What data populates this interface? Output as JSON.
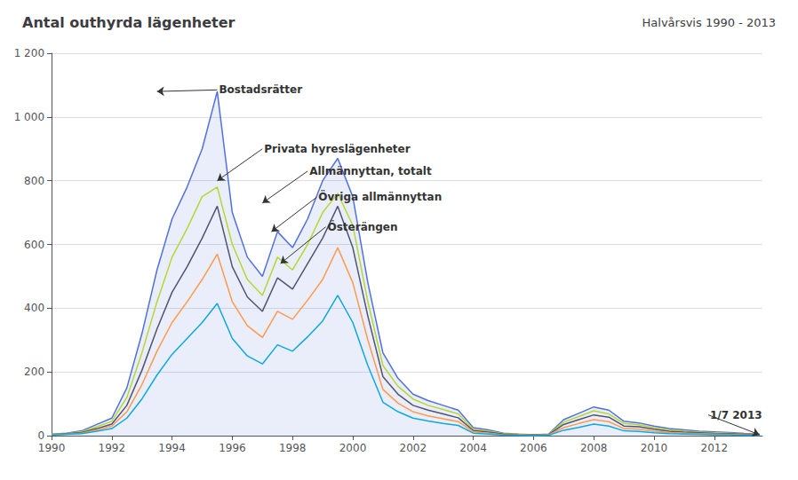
{
  "chart_data": {
    "type": "line",
    "title": "Antal outhyrda lägenheter",
    "subtitle": "Halvårsvis 1990 - 2013",
    "x": [
      1990,
      1990.5,
      1991,
      1991.5,
      1992,
      1992.5,
      1993,
      1993.5,
      1994,
      1994.5,
      1995,
      1995.5,
      1996,
      1996.5,
      1997,
      1997.5,
      1998,
      1998.5,
      1999,
      1999.5,
      2000,
      2000.5,
      2001,
      2001.5,
      2002,
      2002.5,
      2003,
      2003.5,
      2004,
      2004.5,
      2005,
      2005.5,
      2006,
      2006.5,
      2007,
      2007.5,
      2008,
      2008.5,
      2009,
      2009.5,
      2010,
      2010.5,
      2011,
      2011.5,
      2012,
      2012.5,
      2013,
      2013.5
    ],
    "series": [
      {
        "name": "Bostadsrätter",
        "values": [
          5,
          8,
          15,
          35,
          55,
          150,
          320,
          520,
          680,
          780,
          900,
          1080,
          700,
          560,
          500,
          640,
          590,
          680,
          800,
          870,
          750,
          480,
          260,
          180,
          130,
          110,
          95,
          80,
          25,
          18,
          8,
          5,
          3,
          5,
          50,
          70,
          90,
          80,
          45,
          40,
          30,
          22,
          18,
          14,
          12,
          10,
          7,
          5
        ]
      },
      {
        "name": "Privata hyreslägenheter",
        "values": [
          4,
          7,
          12,
          28,
          45,
          120,
          260,
          420,
          560,
          650,
          750,
          780,
          600,
          490,
          440,
          560,
          520,
          600,
          700,
          760,
          660,
          420,
          220,
          155,
          115,
          95,
          82,
          68,
          20,
          14,
          6,
          4,
          2,
          4,
          42,
          60,
          78,
          68,
          38,
          34,
          25,
          18,
          14,
          11,
          9,
          8,
          5,
          4
        ]
      },
      {
        "name": "Allmännyttan, totalt",
        "values": [
          3,
          6,
          10,
          22,
          36,
          95,
          205,
          335,
          450,
          530,
          620,
          720,
          530,
          435,
          390,
          495,
          460,
          540,
          620,
          720,
          590,
          375,
          185,
          130,
          95,
          80,
          68,
          56,
          16,
          11,
          5,
          3,
          2,
          3,
          35,
          50,
          65,
          58,
          30,
          28,
          20,
          14,
          11,
          9,
          7,
          6,
          4,
          3
        ]
      },
      {
        "name": "Övriga allmännyttan",
        "values": [
          3,
          5,
          8,
          18,
          30,
          75,
          160,
          265,
          355,
          420,
          490,
          570,
          420,
          345,
          308,
          390,
          365,
          425,
          490,
          590,
          480,
          300,
          145,
          102,
          75,
          62,
          53,
          44,
          12,
          8,
          3,
          2,
          1,
          2,
          25,
          38,
          50,
          44,
          22,
          20,
          14,
          10,
          8,
          6,
          5,
          4,
          2,
          2
        ]
      },
      {
        "name": "Österängen",
        "values": [
          2,
          4,
          6,
          14,
          22,
          55,
          115,
          190,
          255,
          305,
          355,
          415,
          305,
          250,
          225,
          285,
          265,
          310,
          360,
          440,
          355,
          220,
          105,
          75,
          55,
          46,
          38,
          32,
          8,
          5,
          2,
          1,
          1,
          1,
          17,
          26,
          36,
          30,
          15,
          13,
          9,
          6,
          5,
          4,
          3,
          3,
          1,
          1
        ]
      }
    ],
    "xlim": [
      1990,
      2013.6
    ],
    "xticks": [
      1990,
      1992,
      1994,
      1996,
      1998,
      2000,
      2002,
      2004,
      2006,
      2008,
      2010,
      2012
    ],
    "ylim": [
      0,
      1200
    ],
    "yticks": [
      0,
      200,
      400,
      600,
      800,
      {
        "value": 1000,
        "label": "1 000"
      },
      {
        "value": 1200,
        "label": "1 200"
      }
    ],
    "grid": true,
    "annotations": [
      {
        "text": "Bostadsrätter",
        "xy": [
          1993.5,
          1080
        ],
        "xytext": [
          1995.5,
          1085
        ]
      },
      {
        "text": "Privata hyreslägenheter",
        "xy": [
          1995.5,
          800
        ],
        "xytext": [
          1997.0,
          900
        ]
      },
      {
        "text": "Allmännyttan, totalt",
        "xy": [
          1997.0,
          730
        ],
        "xytext": [
          1998.5,
          830
        ]
      },
      {
        "text": "Övriga allmännyttan",
        "xy": [
          1997.3,
          640
        ],
        "xytext": [
          1998.8,
          748
        ]
      },
      {
        "text": "Österängen",
        "xy": [
          1997.6,
          540
        ],
        "xytext": [
          1999.1,
          655
        ]
      },
      {
        "text": "1/7 2013",
        "xy": [
          2013.5,
          3
        ],
        "xytext": [
          2011.8,
          65
        ]
      }
    ]
  }
}
